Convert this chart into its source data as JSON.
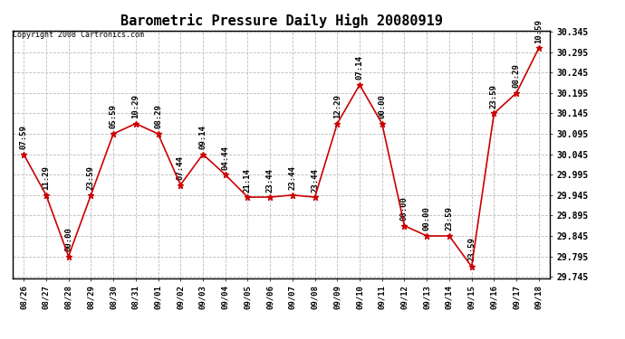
{
  "title": "Barometric Pressure Daily High 20080919",
  "copyright": "Copyright 2008 Cartronics.com",
  "x_labels": [
    "08/26",
    "08/27",
    "08/28",
    "08/29",
    "08/30",
    "08/31",
    "09/01",
    "09/02",
    "09/03",
    "09/04",
    "09/05",
    "09/06",
    "09/07",
    "09/08",
    "09/09",
    "09/10",
    "09/11",
    "09/12",
    "09/13",
    "09/14",
    "09/15",
    "09/16",
    "09/17",
    "09/18"
  ],
  "y_values": [
    30.045,
    29.945,
    29.795,
    29.945,
    30.095,
    30.12,
    30.095,
    29.97,
    30.045,
    29.995,
    29.94,
    29.94,
    29.945,
    29.94,
    30.12,
    30.215,
    30.12,
    29.87,
    29.845,
    29.845,
    29.77,
    30.145,
    30.195,
    30.305
  ],
  "annotations": [
    "07:59",
    "11:29",
    "00:00",
    "23:59",
    "05:59",
    "10:29",
    "08:29",
    "07:44",
    "09:14",
    "04:44",
    "21:14",
    "23:44",
    "23:44",
    "23:44",
    "12:29",
    "07:14",
    "00:00",
    "00:00",
    "00:00",
    "23:59",
    "23:59",
    "23:59",
    "08:29",
    "10:59"
  ],
  "ytick_values": [
    29.745,
    29.795,
    29.845,
    29.895,
    29.945,
    29.995,
    30.045,
    30.095,
    30.145,
    30.195,
    30.245,
    30.295,
    30.345
  ],
  "line_color": "#cc0000",
  "marker_color": "#cc0000",
  "background_color": "#ffffff",
  "grid_color": "#bbbbbb",
  "title_fontsize": 11,
  "annotation_fontsize": 6.5,
  "copyright_fontsize": 6
}
